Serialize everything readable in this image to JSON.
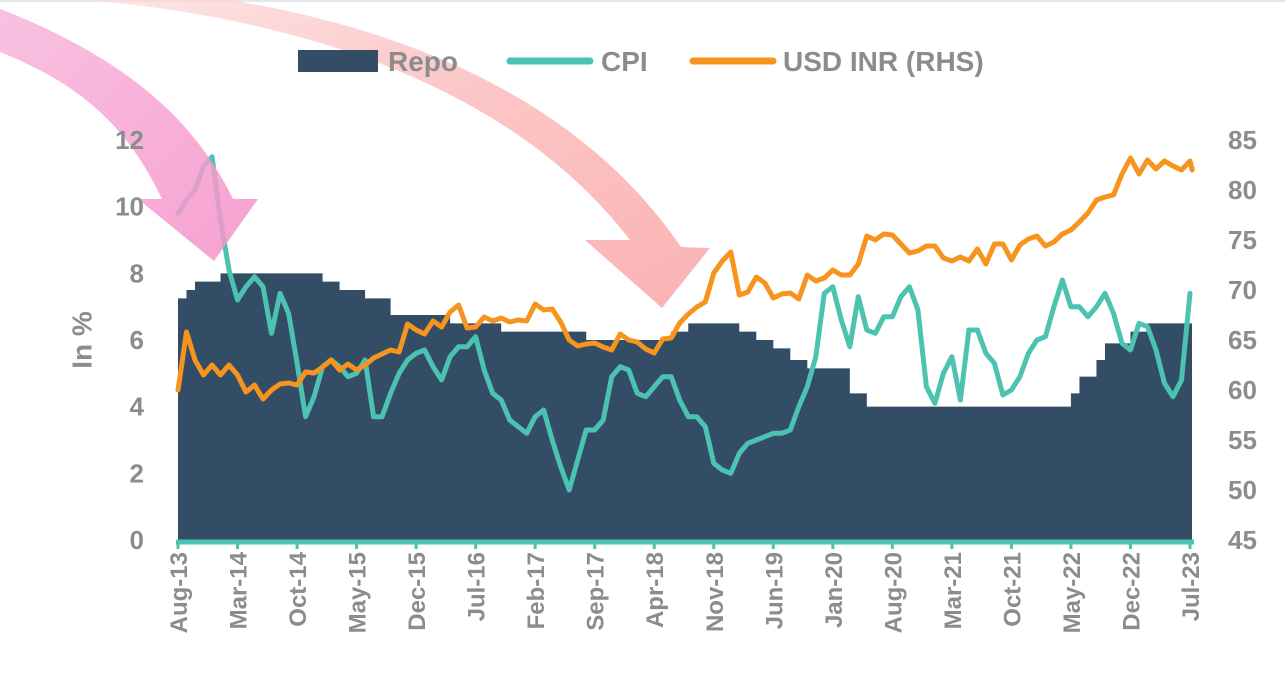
{
  "chart_data": {
    "type": "area+line",
    "ylabel": "In %",
    "ylim": [
      0,
      12
    ],
    "y2lim": [
      45,
      85
    ],
    "yticks": [
      0,
      2,
      4,
      6,
      8,
      10,
      12
    ],
    "y2ticks": [
      45,
      50,
      55,
      60,
      65,
      70,
      75,
      80,
      85
    ],
    "categories": [
      "Aug-13",
      "Mar-14",
      "Oct-14",
      "May-15",
      "Dec-15",
      "Jul-16",
      "Feb-17",
      "Sep-17",
      "Apr-18",
      "Nov-18",
      "Jun-19",
      "Jan-20",
      "Aug-20",
      "Mar-21",
      "Oct-21",
      "May-22",
      "Dec-22",
      "Jul-23"
    ],
    "legend_position": "top",
    "series": [
      {
        "name": "Repo",
        "kind": "area",
        "axis": "left",
        "color": "#334d66",
        "points": [
          [
            "Aug-13",
            7.25
          ],
          [
            "Sep-13",
            7.5
          ],
          [
            "Oct-13",
            7.75
          ],
          [
            "Jan-14",
            8.0
          ],
          [
            "Mar-14",
            8.0
          ],
          [
            "Jan-15",
            7.75
          ],
          [
            "Mar-15",
            7.5
          ],
          [
            "Jun-15",
            7.25
          ],
          [
            "Sep-15",
            6.75
          ],
          [
            "Apr-16",
            6.5
          ],
          [
            "Oct-16",
            6.25
          ],
          [
            "Aug-17",
            6.0
          ],
          [
            "Jun-18",
            6.25
          ],
          [
            "Aug-18",
            6.5
          ],
          [
            "Feb-19",
            6.25
          ],
          [
            "Apr-19",
            6.0
          ],
          [
            "Jun-19",
            5.75
          ],
          [
            "Aug-19",
            5.4
          ],
          [
            "Oct-19",
            5.15
          ],
          [
            "Mar-20",
            4.4
          ],
          [
            "May-20",
            4.0
          ],
          [
            "Apr-22",
            4.0
          ],
          [
            "May-22",
            4.4
          ],
          [
            "Jun-22",
            4.9
          ],
          [
            "Aug-22",
            5.4
          ],
          [
            "Sep-22",
            5.9
          ],
          [
            "Dec-22",
            6.25
          ],
          [
            "Feb-23",
            6.5
          ],
          [
            "Jul-23",
            6.5
          ]
        ]
      },
      {
        "name": "CPI",
        "kind": "line",
        "axis": "left",
        "color": "#4cc2b1",
        "points": [
          [
            "Aug-13",
            9.8
          ],
          [
            "Sep-13",
            10.2
          ],
          [
            "Oct-13",
            10.5
          ],
          [
            "Nov-13",
            11.2
          ],
          [
            "Dec-13",
            11.5
          ],
          [
            "Jan-14",
            9.6
          ],
          [
            "Feb-14",
            8.1
          ],
          [
            "Mar-14",
            7.2
          ],
          [
            "Apr-14",
            7.6
          ],
          [
            "May-14",
            7.9
          ],
          [
            "Jun-14",
            7.6
          ],
          [
            "Jul-14",
            6.2
          ],
          [
            "Aug-14",
            7.4
          ],
          [
            "Sep-14",
            6.8
          ],
          [
            "Oct-14",
            5.3
          ],
          [
            "Nov-14",
            3.7
          ],
          [
            "Dec-14",
            4.3
          ],
          [
            "Jan-15",
            5.2
          ],
          [
            "Feb-15",
            5.4
          ],
          [
            "Mar-15",
            5.2
          ],
          [
            "Apr-15",
            4.9
          ],
          [
            "May-15",
            5.0
          ],
          [
            "Jun-15",
            5.4
          ],
          [
            "Jul-15",
            3.7
          ],
          [
            "Aug-15",
            3.7
          ],
          [
            "Sep-15",
            4.4
          ],
          [
            "Oct-15",
            5.0
          ],
          [
            "Nov-15",
            5.4
          ],
          [
            "Dec-15",
            5.6
          ],
          [
            "Jan-16",
            5.7
          ],
          [
            "Feb-16",
            5.2
          ],
          [
            "Mar-16",
            4.8
          ],
          [
            "Apr-16",
            5.5
          ],
          [
            "May-16",
            5.8
          ],
          [
            "Jun-16",
            5.8
          ],
          [
            "Jul-16",
            6.1
          ],
          [
            "Aug-16",
            5.1
          ],
          [
            "Sep-16",
            4.4
          ],
          [
            "Oct-16",
            4.2
          ],
          [
            "Nov-16",
            3.6
          ],
          [
            "Dec-16",
            3.4
          ],
          [
            "Jan-17",
            3.2
          ],
          [
            "Feb-17",
            3.7
          ],
          [
            "Mar-17",
            3.9
          ],
          [
            "Apr-17",
            3.0
          ],
          [
            "May-17",
            2.2
          ],
          [
            "Jun-17",
            1.5
          ],
          [
            "Jul-17",
            2.4
          ],
          [
            "Aug-17",
            3.3
          ],
          [
            "Sep-17",
            3.3
          ],
          [
            "Oct-17",
            3.6
          ],
          [
            "Nov-17",
            4.9
          ],
          [
            "Dec-17",
            5.2
          ],
          [
            "Jan-18",
            5.1
          ],
          [
            "Feb-18",
            4.4
          ],
          [
            "Mar-18",
            4.3
          ],
          [
            "Apr-18",
            4.6
          ],
          [
            "May-18",
            4.9
          ],
          [
            "Jun-18",
            4.9
          ],
          [
            "Jul-18",
            4.2
          ],
          [
            "Aug-18",
            3.7
          ],
          [
            "Sep-18",
            3.7
          ],
          [
            "Oct-18",
            3.4
          ],
          [
            "Nov-18",
            2.3
          ],
          [
            "Dec-18",
            2.1
          ],
          [
            "Jan-19",
            2.0
          ],
          [
            "Feb-19",
            2.6
          ],
          [
            "Mar-19",
            2.9
          ],
          [
            "Apr-19",
            3.0
          ],
          [
            "May-19",
            3.1
          ],
          [
            "Jun-19",
            3.2
          ],
          [
            "Jul-19",
            3.2
          ],
          [
            "Aug-19",
            3.3
          ],
          [
            "Sep-19",
            4.0
          ],
          [
            "Oct-19",
            4.6
          ],
          [
            "Nov-19",
            5.5
          ],
          [
            "Dec-19",
            7.4
          ],
          [
            "Jan-20",
            7.6
          ],
          [
            "Feb-20",
            6.6
          ],
          [
            "Mar-20",
            5.8
          ],
          [
            "Apr-20",
            7.3
          ],
          [
            "May-20",
            6.3
          ],
          [
            "Jun-20",
            6.2
          ],
          [
            "Jul-20",
            6.7
          ],
          [
            "Aug-20",
            6.7
          ],
          [
            "Sep-20",
            7.3
          ],
          [
            "Oct-20",
            7.6
          ],
          [
            "Nov-20",
            6.9
          ],
          [
            "Dec-20",
            4.6
          ],
          [
            "Jan-21",
            4.1
          ],
          [
            "Feb-21",
            5.0
          ],
          [
            "Mar-21",
            5.5
          ],
          [
            "Apr-21",
            4.2
          ],
          [
            "May-21",
            6.3
          ],
          [
            "Jun-21",
            6.3
          ],
          [
            "Jul-21",
            5.6
          ],
          [
            "Aug-21",
            5.3
          ],
          [
            "Sep-21",
            4.35
          ],
          [
            "Oct-21",
            4.5
          ],
          [
            "Nov-21",
            4.9
          ],
          [
            "Dec-21",
            5.6
          ],
          [
            "Jan-22",
            6.0
          ],
          [
            "Feb-22",
            6.1
          ],
          [
            "Mar-22",
            7.0
          ],
          [
            "Apr-22",
            7.8
          ],
          [
            "May-22",
            7.0
          ],
          [
            "Jun-22",
            7.0
          ],
          [
            "Jul-22",
            6.7
          ],
          [
            "Aug-22",
            7.0
          ],
          [
            "Sep-22",
            7.4
          ],
          [
            "Oct-22",
            6.8
          ],
          [
            "Nov-22",
            5.9
          ],
          [
            "Dec-22",
            5.7
          ],
          [
            "Jan-23",
            6.5
          ],
          [
            "Feb-23",
            6.4
          ],
          [
            "Mar-23",
            5.7
          ],
          [
            "Apr-23",
            4.7
          ],
          [
            "May-23",
            4.3
          ],
          [
            "Jun-23",
            4.8
          ],
          [
            "Jul-23",
            7.4
          ]
        ]
      },
      {
        "name": "USD INR (RHS)",
        "kind": "line",
        "axis": "right",
        "color": "#f7941d",
        "points": [
          [
            "Aug-13",
            60.0
          ],
          [
            "Sep-13",
            65.8
          ],
          [
            "Oct-13",
            63.0
          ],
          [
            "Nov-13",
            61.5
          ],
          [
            "Dec-13",
            62.5
          ],
          [
            "Jan-14",
            61.5
          ],
          [
            "Feb-14",
            62.5
          ],
          [
            "Mar-14",
            61.5
          ],
          [
            "Apr-14",
            59.8
          ],
          [
            "May-14",
            60.5
          ],
          [
            "Jun-14",
            59.1
          ],
          [
            "Jul-14",
            60.0
          ],
          [
            "Aug-14",
            60.6
          ],
          [
            "Sep-14",
            60.7
          ],
          [
            "Oct-14",
            60.5
          ],
          [
            "Nov-14",
            61.8
          ],
          [
            "Dec-14",
            61.7
          ],
          [
            "Jan-15",
            62.3
          ],
          [
            "Feb-15",
            63.0
          ],
          [
            "Mar-15",
            62.0
          ],
          [
            "Apr-15",
            62.6
          ],
          [
            "May-15",
            62.0
          ],
          [
            "Jun-15",
            62.5
          ],
          [
            "Jul-15",
            63.2
          ],
          [
            "Aug-15",
            63.6
          ],
          [
            "Sep-15",
            64.0
          ],
          [
            "Oct-15",
            63.8
          ],
          [
            "Nov-15",
            66.6
          ],
          [
            "Dec-15",
            66.0
          ],
          [
            "Jan-16",
            65.6
          ],
          [
            "Feb-16",
            66.9
          ],
          [
            "Mar-16",
            66.3
          ],
          [
            "Apr-16",
            67.8
          ],
          [
            "May-16",
            68.5
          ],
          [
            "Jun-16",
            66.2
          ],
          [
            "Jul-16",
            66.3
          ],
          [
            "Aug-16",
            67.3
          ],
          [
            "Sep-16",
            66.9
          ],
          [
            "Oct-16",
            67.2
          ],
          [
            "Nov-16",
            66.8
          ],
          [
            "Dec-16",
            67.0
          ],
          [
            "Jan-17",
            66.9
          ],
          [
            "Feb-17",
            68.6
          ],
          [
            "Mar-17",
            68.0
          ],
          [
            "Apr-17",
            68.1
          ],
          [
            "May-17",
            66.8
          ],
          [
            "Jun-17",
            65.0
          ],
          [
            "Jul-17",
            64.4
          ],
          [
            "Aug-17",
            64.6
          ],
          [
            "Sep-17",
            64.7
          ],
          [
            "Oct-17",
            64.3
          ],
          [
            "Nov-17",
            64.0
          ],
          [
            "Dec-17",
            65.6
          ],
          [
            "Jan-18",
            65.0
          ],
          [
            "Feb-18",
            64.8
          ],
          [
            "Mar-18",
            64.1
          ],
          [
            "Apr-18",
            63.7
          ],
          [
            "May-18",
            65.1
          ],
          [
            "Jun-18",
            65.2
          ],
          [
            "Jul-18",
            66.7
          ],
          [
            "Aug-18",
            67.6
          ],
          [
            "Sep-18",
            68.3
          ],
          [
            "Oct-18",
            68.8
          ],
          [
            "Nov-18",
            71.7
          ],
          [
            "Dec-18",
            72.9
          ],
          [
            "Jan-19",
            73.8
          ],
          [
            "Feb-19",
            69.5
          ],
          [
            "Mar-19",
            69.8
          ],
          [
            "Apr-19",
            71.3
          ],
          [
            "May-19",
            70.7
          ],
          [
            "Jun-19",
            69.2
          ],
          [
            "Jul-19",
            69.6
          ],
          [
            "Aug-19",
            69.7
          ],
          [
            "Sep-19",
            69.1
          ],
          [
            "Oct-19",
            71.5
          ],
          [
            "Nov-19",
            70.9
          ],
          [
            "Dec-19",
            71.2
          ],
          [
            "Jan-20",
            72.0
          ],
          [
            "Feb-20",
            71.5
          ],
          [
            "Mar-20",
            71.5
          ],
          [
            "Apr-20",
            72.6
          ],
          [
            "May-20",
            75.4
          ],
          [
            "Jun-20",
            75.0
          ],
          [
            "Jul-20",
            75.6
          ],
          [
            "Aug-20",
            75.5
          ],
          [
            "Sep-20",
            74.6
          ],
          [
            "Oct-20",
            73.7
          ],
          [
            "Nov-20",
            73.9
          ],
          [
            "Dec-20",
            74.4
          ],
          [
            "Jan-21",
            74.4
          ],
          [
            "Feb-21",
            73.2
          ],
          [
            "Mar-21",
            72.9
          ],
          [
            "Apr-21",
            73.3
          ],
          [
            "May-21",
            72.9
          ],
          [
            "Jun-21",
            74.1
          ],
          [
            "Jul-21",
            72.6
          ],
          [
            "Aug-21",
            74.6
          ],
          [
            "Sep-21",
            74.6
          ],
          [
            "Oct-21",
            73.0
          ],
          [
            "Nov-21",
            74.5
          ],
          [
            "Dec-21",
            75.1
          ],
          [
            "Jan-22",
            75.4
          ],
          [
            "Feb-22",
            74.4
          ],
          [
            "Mar-22",
            74.8
          ],
          [
            "Apr-22",
            75.6
          ],
          [
            "May-22",
            76.0
          ],
          [
            "Jun-22",
            76.8
          ],
          [
            "Jul-22",
            77.7
          ],
          [
            "Aug-22",
            79.0
          ],
          [
            "Sep-22",
            79.3
          ],
          [
            "Oct-22",
            79.5
          ],
          [
            "Nov-22",
            81.6
          ],
          [
            "Dec-22",
            83.2
          ],
          [
            "Jan-23",
            81.6
          ],
          [
            "Feb-23",
            83.0
          ],
          [
            "Mar-23",
            82.1
          ],
          [
            "Apr-23",
            82.9
          ],
          [
            "May-23",
            82.4
          ],
          [
            "Jun-23",
            82.0
          ],
          [
            "Jul-23",
            82.9
          ],
          [
            "Aug-23",
            82.0
          ],
          [
            "Sep-23",
            82.2
          ]
        ]
      }
    ]
  }
}
